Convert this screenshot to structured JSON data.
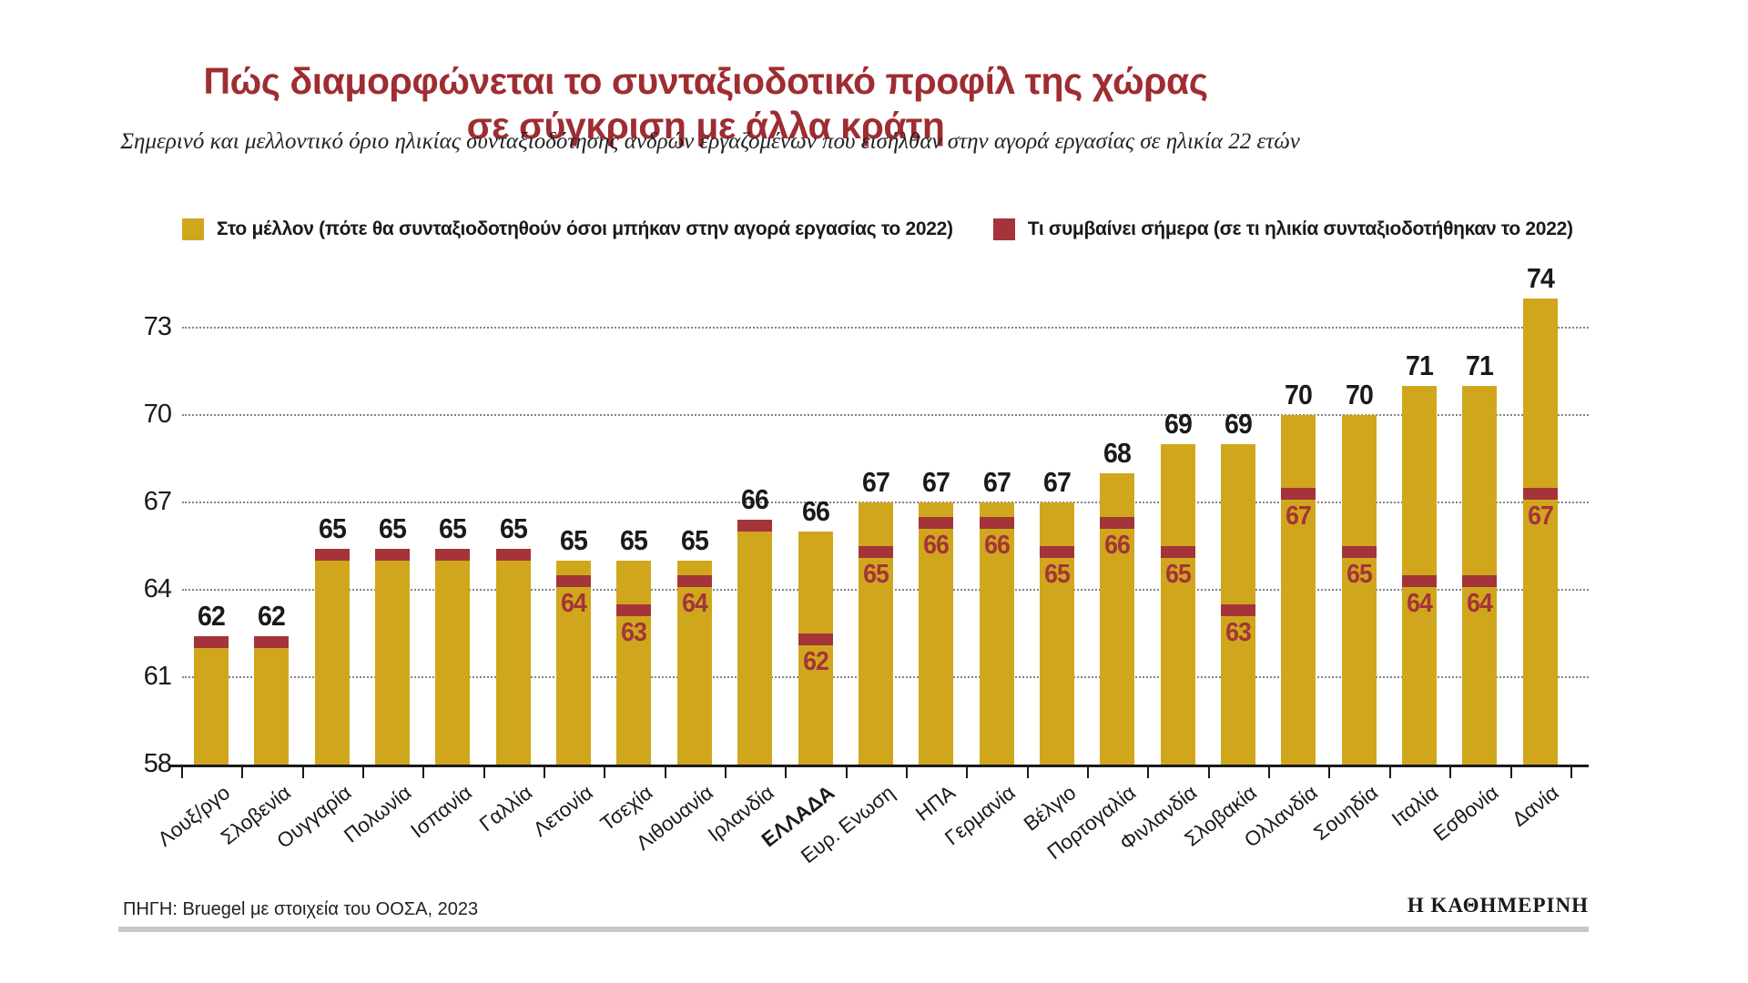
{
  "title": {
    "line1": "Πώς διαμορφώνεται το συνταξιοδοτικό προφίλ της χώρας",
    "line2": "σε σύγκριση με άλλα κράτη"
  },
  "subtitle": "Σημερινό και μελλοντικό όριο ηλικίας συνταξιοδότησης ανδρών εργαζομένων που εισήλθαν στην αγορά εργασίας σε ηλικία 22 ετών",
  "legend": {
    "items": [
      {
        "key": "future",
        "label": "Στο μέλλον (πότε θα συνταξιοδοτηθούν όσοι μπήκαν στην αγορά εργασίας το 2022)"
      },
      {
        "key": "today",
        "label": "Τι συμβαίνει σήμερα (σε τι ηλικία συνταξιοδοτήθηκαν το 2022)"
      }
    ]
  },
  "colors": {
    "future": "#d0a71c",
    "today": "#a4343a",
    "title_red": "#9e2d32",
    "axis": "#1a1a1a",
    "rule_gray": "#c8c8c8"
  },
  "chart_data": {
    "type": "bar",
    "title": "Πώς διαμορφώνεται το συνταξιοδοτικό προφίλ της χώρας σε σύγκριση με άλλα κράτη",
    "subtitle": "Σημερινό και μελλοντικό όριο ηλικίας συνταξιοδότησης ανδρών εργαζομένων που εισήλθαν στην αγορά εργασίας σε ηλικία 22 ετών",
    "xlabel": "",
    "ylabel": "",
    "ylim": [
      58,
      75
    ],
    "y_ticks": [
      58,
      61,
      64,
      67,
      70,
      73
    ],
    "grid": "dotted horizontal",
    "legend_position": "top-left",
    "categories": [
      "Λουξ/ργο",
      "Σλοβενία",
      "Ουγγαρία",
      "Πολωνία",
      "Ισπανία",
      "Γαλλία",
      "Λετονία",
      "Τσεχία",
      "Λιθουανία",
      "Ιρλανδία",
      "ΕΛΛΑΔΑ",
      "Ευρ. Ενωση",
      "ΗΠΑ",
      "Γερμανία",
      "Βέλγιο",
      "Πορτογαλία",
      "Φινλανδία",
      "Σλοβακία",
      "Ολλανδία",
      "Σουηδία",
      "Ιταλία",
      "Εσθονία",
      "Δανία"
    ],
    "bold_category": "ΕΛΛΑΔΑ",
    "series": [
      {
        "name": "Στο μέλλον (πότε θα συνταξιοδοτηθούν όσοι μπήκαν στην αγορά εργασίας το 2022)",
        "values": [
          62,
          62,
          65,
          65,
          65,
          65,
          65,
          65,
          65,
          66,
          66,
          67,
          67,
          67,
          67,
          68,
          69,
          69,
          70,
          70,
          71,
          71,
          74
        ]
      },
      {
        "name": "Τι συμβαίνει σήμερα (σε τι ηλικία συνταξιοδοτήθηκαν το 2022)",
        "values": [
          62,
          62,
          65,
          65,
          65,
          65,
          64,
          63,
          64,
          66,
          62,
          65,
          66,
          66,
          65,
          66,
          65,
          63,
          67,
          65,
          64,
          64,
          67
        ]
      }
    ]
  },
  "source": "ΠΗΓΗ: Bruegel με στοιχεία του ΟΟΣΑ, 2023",
  "logo": "Η ΚΑΘΗΜΕΡΙΝΗ"
}
